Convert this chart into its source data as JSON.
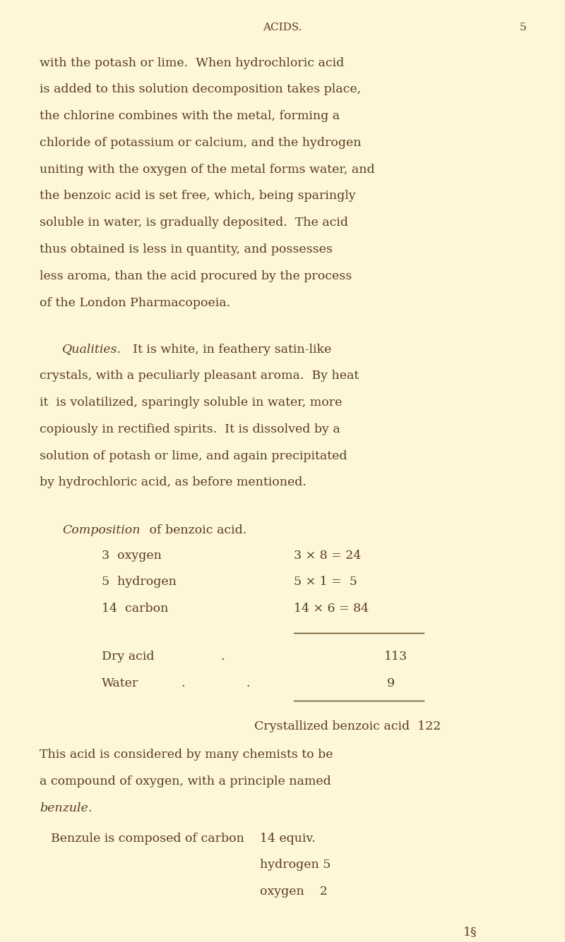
{
  "background_color": "#fdf6d8",
  "text_color": "#5a3e1b",
  "page_width": 8.0,
  "page_height": 13.35,
  "header_title": "ACIDS.",
  "header_page": "5",
  "qualities_italic": "Qualities.",
  "composition_italic": "Composition",
  "composition_text": " of benzoic acid.",
  "dry_acid_label": "Dry acid",
  "dry_acid_value": "113",
  "water_label": "Water",
  "water_value": "9",
  "crystallized_label": "Crystallized benzoic acid  122",
  "benzule_italic": "benzule",
  "benzule_line": "Benzule is composed of carbon    14 equiv.",
  "benzule_h": "hydrogen 5",
  "benzule_o": "oxygen    2",
  "footnote": "1§"
}
